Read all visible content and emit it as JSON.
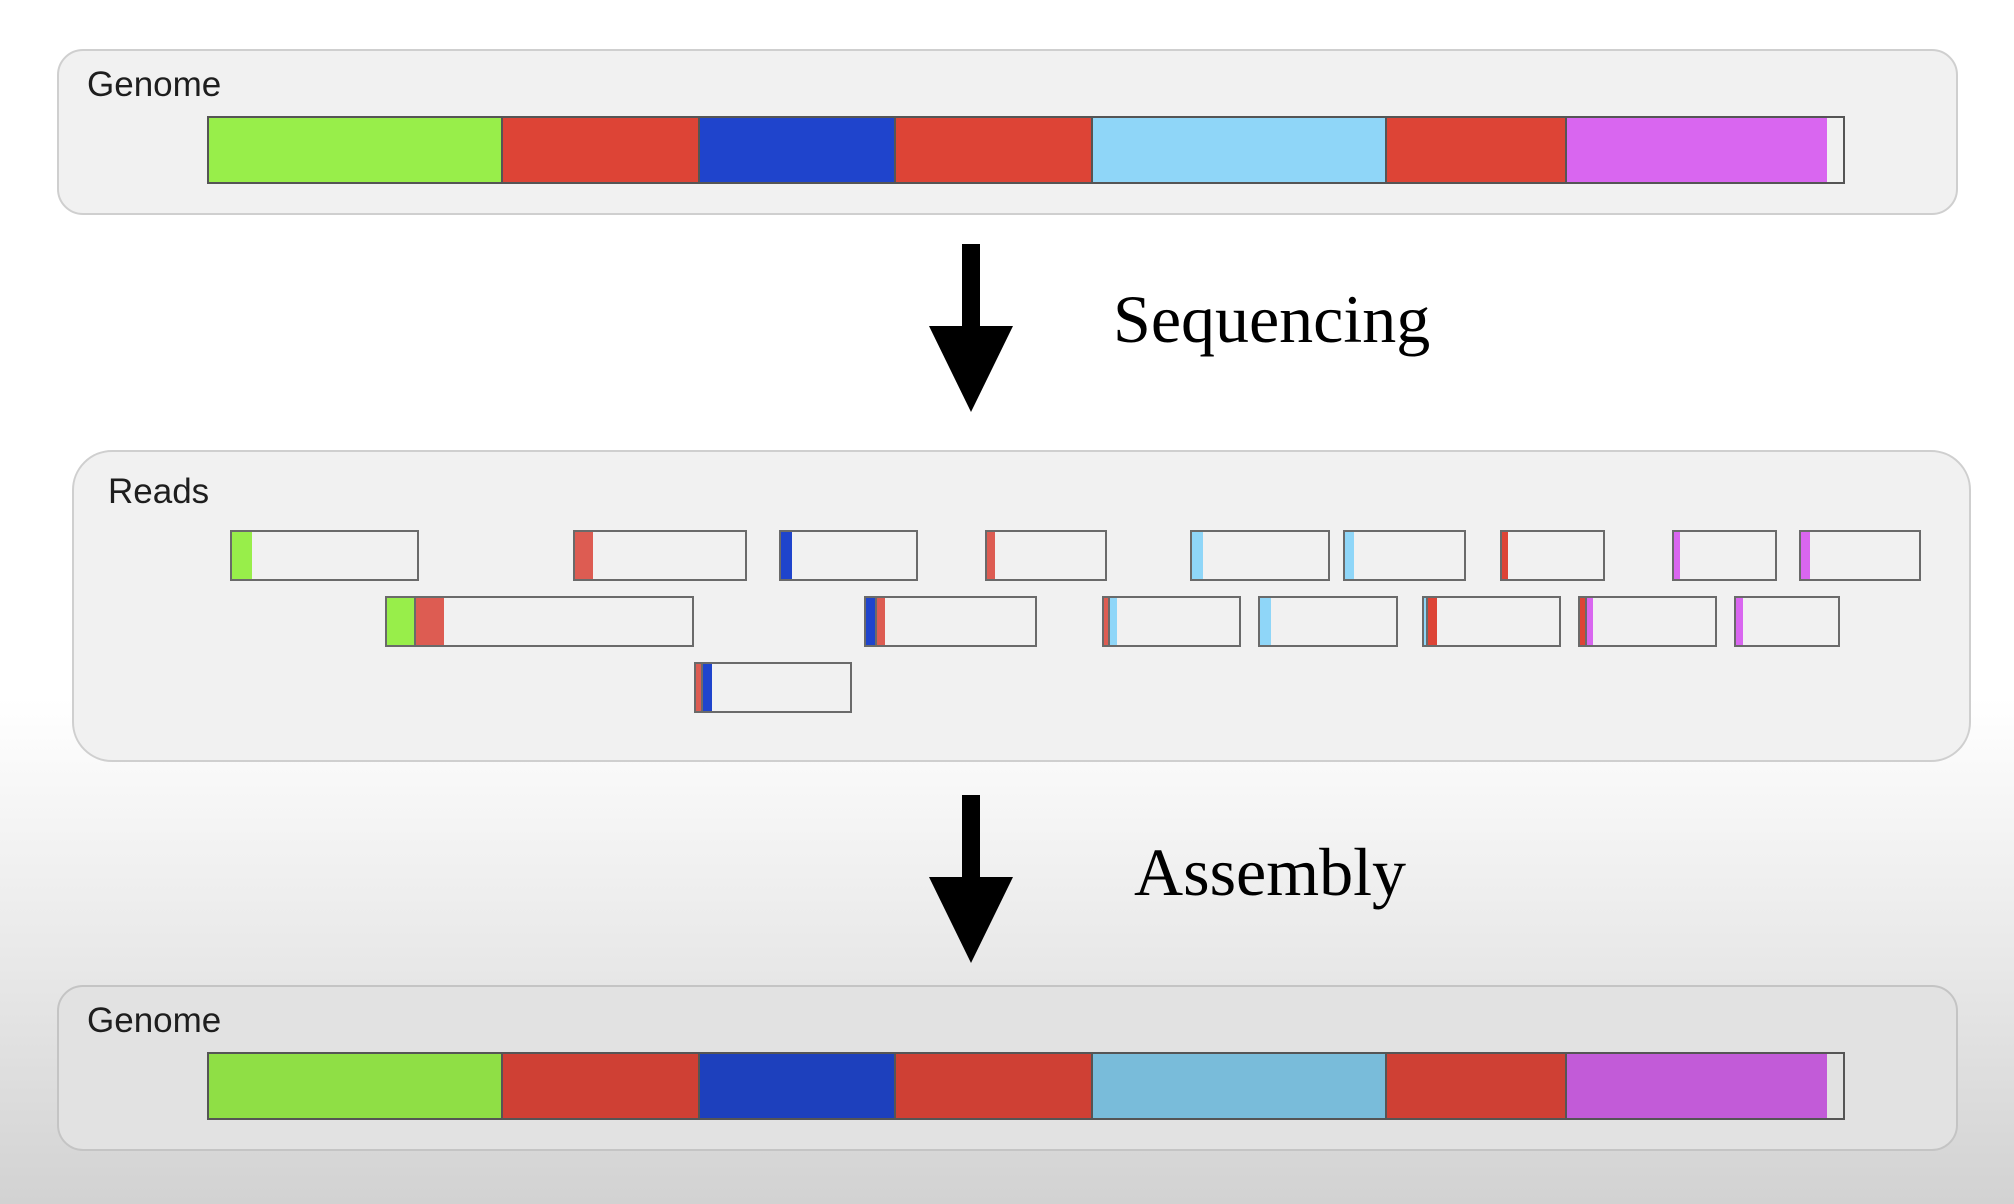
{
  "top_genome": {
    "label": "Genome",
    "segments": [
      {
        "name": "green",
        "length": 0.18,
        "color": "#98ee4a"
      },
      {
        "name": "red-1",
        "length": 0.12,
        "color": "#dd4436"
      },
      {
        "name": "blue",
        "length": 0.12,
        "color": "#1f44cc"
      },
      {
        "name": "red-2",
        "length": 0.12,
        "color": "#dd4436"
      },
      {
        "name": "light-blue",
        "length": 0.18,
        "color": "#8fd6f8"
      },
      {
        "name": "red-3",
        "length": 0.11,
        "color": "#dd4436"
      },
      {
        "name": "purple",
        "length": 0.16,
        "color": "#d966f0"
      }
    ]
  },
  "sequencing_step": {
    "label": "Sequencing"
  },
  "reads": {
    "label": "Reads",
    "rows": [
      [
        {
          "start": 0.007,
          "parts": [
            {
              "length": 0.111,
              "color": "#98ee4a"
            }
          ]
        },
        {
          "start": 0.209,
          "parts": [
            {
              "length": 0.102,
              "color": "#dd5c52"
            }
          ]
        },
        {
          "start": 0.33,
          "parts": [
            {
              "length": 0.082,
              "color": "#1f44cc"
            }
          ]
        },
        {
          "start": 0.451,
          "parts": [
            {
              "length": 0.072,
              "color": "#dd5c52"
            }
          ]
        },
        {
          "start": 0.572,
          "parts": [
            {
              "length": 0.082,
              "color": "#8fd6f8"
            }
          ]
        },
        {
          "start": 0.662,
          "parts": [
            {
              "length": 0.072,
              "color": "#8fd6f8"
            }
          ]
        },
        {
          "start": 0.754,
          "parts": [
            {
              "length": 0.062,
              "color": "#dd4436"
            }
          ]
        },
        {
          "start": 0.855,
          "parts": [
            {
              "length": 0.062,
              "color": "#d966f0"
            }
          ]
        },
        {
          "start": 0.93,
          "parts": [
            {
              "length": 0.072,
              "color": "#d966f0"
            }
          ]
        }
      ],
      [
        {
          "start": 0.098,
          "parts": [
            {
              "length": 0.091,
              "color": "#98ee4a"
            },
            {
              "length": 0.091,
              "color": "#dd5c52"
            }
          ]
        },
        {
          "start": 0.38,
          "parts": [
            {
              "length": 0.051,
              "color": "#1f44cc"
            },
            {
              "length": 0.051,
              "color": "#dd5c52"
            }
          ]
        },
        {
          "start": 0.52,
          "parts": [
            {
              "length": 0.031,
              "color": "#dd5c52"
            },
            {
              "length": 0.051,
              "color": "#8fd6f8"
            }
          ]
        },
        {
          "start": 0.612,
          "parts": [
            {
              "length": 0.082,
              "color": "#8fd6f8"
            }
          ]
        },
        {
          "start": 0.708,
          "parts": [
            {
              "length": 0.02,
              "color": "#8fd6f8"
            },
            {
              "length": 0.062,
              "color": "#dd4436"
            }
          ]
        },
        {
          "start": 0.8,
          "parts": [
            {
              "length": 0.041,
              "color": "#dd4436"
            },
            {
              "length": 0.041,
              "color": "#d966f0"
            }
          ]
        },
        {
          "start": 0.892,
          "parts": [
            {
              "length": 0.062,
              "color": "#d966f0"
            }
          ]
        }
      ],
      [
        {
          "start": 0.28,
          "parts": [
            {
              "length": 0.031,
              "color": "#dd5c52"
            },
            {
              "length": 0.062,
              "color": "#1f44cc"
            }
          ]
        }
      ]
    ]
  },
  "assembly_step": {
    "label": "Assembly"
  },
  "bottom_genome": {
    "label": "Genome",
    "segments": [
      {
        "name": "green",
        "length": 0.18,
        "color": "#8fdf45"
      },
      {
        "name": "red-1",
        "length": 0.12,
        "color": "#cf4034"
      },
      {
        "name": "blue",
        "length": 0.12,
        "color": "#1d40bd"
      },
      {
        "name": "red-2",
        "length": 0.12,
        "color": "#cf4034"
      },
      {
        "name": "light-blue",
        "length": 0.18,
        "color": "#79bcda"
      },
      {
        "name": "red-3",
        "length": 0.11,
        "color": "#cf4034"
      },
      {
        "name": "purple",
        "length": 0.16,
        "color": "#c25bd8"
      }
    ]
  }
}
